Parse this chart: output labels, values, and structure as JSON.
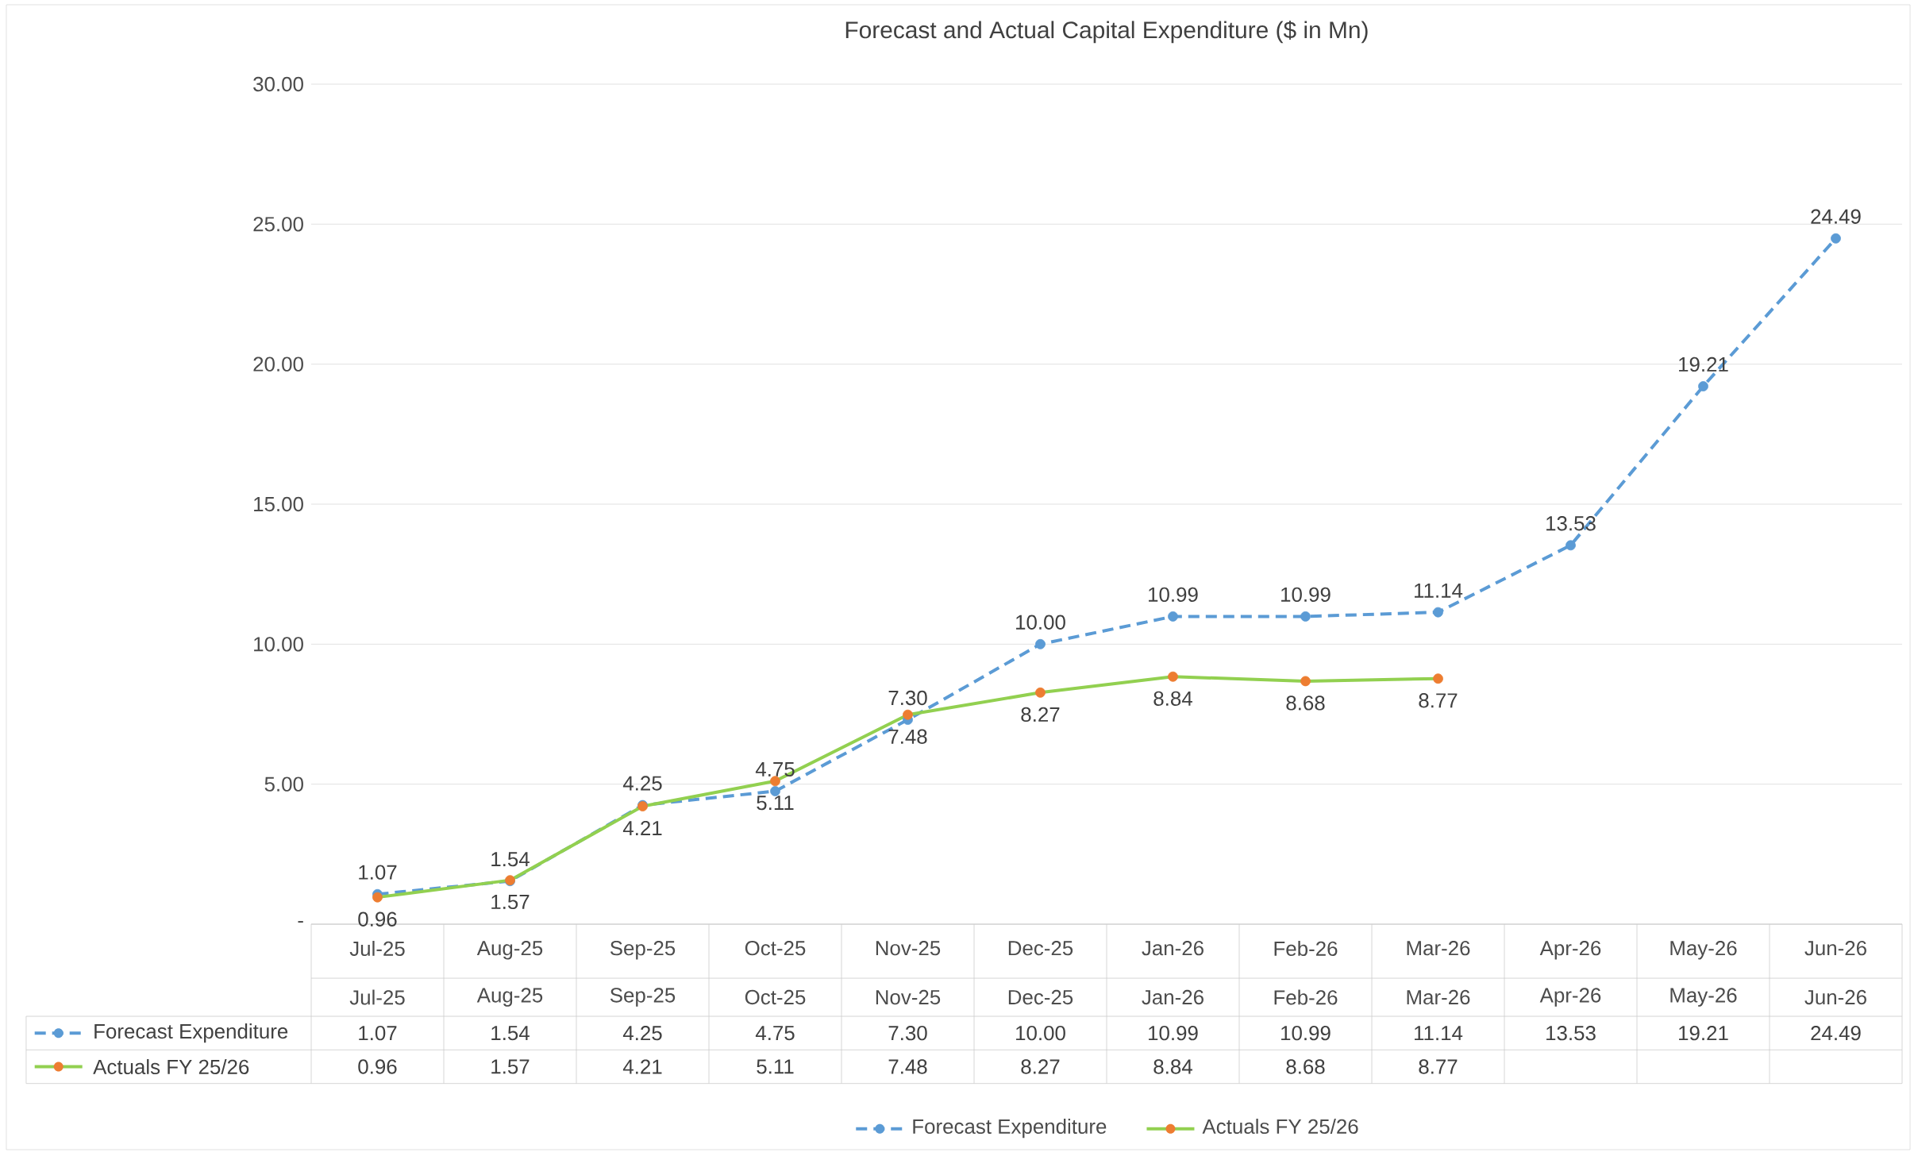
{
  "chart_data": {
    "type": "line",
    "title": "Forecast and Actual Capital Expenditure ($ in Mn)",
    "categories": [
      "Jul-25",
      "Aug-25",
      "Sep-25",
      "Oct-25",
      "Nov-25",
      "Dec-25",
      "Jan-26",
      "Feb-26",
      "Mar-26",
      "Apr-26",
      "May-26",
      "Jun-26"
    ],
    "series": [
      {
        "name": "Forecast Expenditure",
        "color": "#5b9bd5",
        "line_style": "dashed",
        "values": [
          1.07,
          1.54,
          4.25,
          4.75,
          7.3,
          10.0,
          10.99,
          10.99,
          11.14,
          13.53,
          19.21,
          24.49
        ],
        "value_labels": [
          "1.07",
          "1.54",
          "4.25",
          "4.75",
          "7.30",
          "10.00",
          "10.99",
          "10.99",
          "11.14",
          "13.53",
          "19.21",
          "24.49"
        ]
      },
      {
        "name": "Actuals FY 25/26",
        "color": "#92d050",
        "colors": [
          "#ed7d31",
          "#ed7d31",
          "#ed7d31",
          "#ed7d31",
          "#ed7d31",
          "#ed7d31",
          "#ed7d31",
          "#ed7d31",
          "#ed7d31",
          "#ed7d31",
          "#ed7d31",
          "#ed7d31"
        ],
        "line_style": "solid",
        "values": [
          0.96,
          1.57,
          4.21,
          5.11,
          7.48,
          8.27,
          8.84,
          8.68,
          8.77,
          null,
          null,
          null
        ],
        "value_labels": [
          "0.96",
          "1.57",
          "4.21",
          "5.11",
          "7.48",
          "8.27",
          "8.84",
          "8.68",
          "8.77",
          null,
          null,
          null
        ]
      }
    ],
    "ylim": [
      0,
      30
    ],
    "yticks": [
      {
        "value": 0,
        "label": "-"
      },
      {
        "value": 5,
        "label": "5.00"
      },
      {
        "value": 10,
        "label": "10.00"
      },
      {
        "value": 15,
        "label": "15.00"
      },
      {
        "value": 20,
        "label": "20.00"
      },
      {
        "value": 25,
        "label": "25.00"
      },
      {
        "value": 30,
        "label": "30.00"
      }
    ],
    "grid": "y",
    "legend": "bottom",
    "marker": "circle"
  }
}
